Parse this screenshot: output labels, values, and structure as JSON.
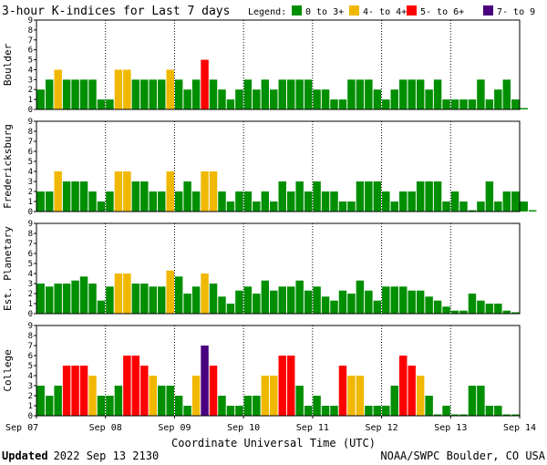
{
  "chart_data": {
    "type": "bar",
    "title": "3-hour K-indices for Last 7 days",
    "legend_title": "Legend:",
    "legend": [
      {
        "label": "0 to 3+",
        "color": "#008f00"
      },
      {
        "label": "4- to 4+",
        "color": "#f0b800"
      },
      {
        "label": "5- to 6+",
        "color": "#ff0000"
      },
      {
        "label": "7- to 9",
        "color": "#48007f"
      }
    ],
    "ylim": [
      0,
      9
    ],
    "y_ticks": [
      "0",
      "1",
      "2",
      "3",
      "4",
      "5",
      "6",
      "7",
      "8",
      "9"
    ],
    "x_ticks": [
      "Sep 07",
      "Sep 08",
      "Sep 09",
      "Sep 10",
      "Sep 11",
      "Sep 12",
      "Sep 13",
      "Sep 14"
    ],
    "xlabel": "Coordinate Universal Time (UTC)",
    "interval_hours": 3,
    "series": [
      {
        "name": "Boulder",
        "values": [
          2,
          3,
          4,
          3,
          3,
          3,
          3,
          1,
          1,
          4,
          4,
          3,
          3,
          3,
          3,
          4,
          3,
          2,
          3,
          5,
          3,
          2,
          1,
          2,
          3,
          2,
          3,
          2,
          3,
          3,
          3,
          3,
          2,
          2,
          1,
          1,
          3,
          3,
          3,
          2,
          1,
          2,
          3,
          3,
          3,
          2,
          3,
          1,
          1,
          1,
          1,
          3,
          1,
          2,
          3,
          1,
          0.1
        ]
      },
      {
        "name": "Fredericksburg",
        "values": [
          2,
          2,
          4,
          3,
          3,
          3,
          2,
          1,
          2,
          4,
          4,
          3,
          3,
          2,
          2,
          4,
          2,
          3,
          2,
          4,
          4,
          2,
          1,
          2,
          2,
          1,
          2,
          1,
          3,
          2,
          3,
          2,
          3,
          2,
          2,
          1,
          1,
          3,
          3,
          3,
          2,
          1,
          2,
          2,
          3,
          3,
          3,
          1,
          2,
          1,
          0.1,
          1,
          3,
          1,
          2,
          2,
          1,
          0.1
        ]
      },
      {
        "name": "Est. Planetary",
        "values": [
          3,
          2.7,
          3,
          3,
          3.3,
          3.7,
          3,
          1.3,
          2.7,
          4,
          4,
          3,
          3,
          2.7,
          2.7,
          4.3,
          3.7,
          2,
          2.7,
          4,
          3,
          1.7,
          1,
          2.3,
          2.7,
          2,
          3.3,
          2.3,
          2.7,
          2.7,
          3.3,
          2.3,
          2.7,
          1.7,
          1.3,
          2.3,
          2,
          3.3,
          2.3,
          1.3,
          2.7,
          2.7,
          2.7,
          2.3,
          2.3,
          1.7,
          1.3,
          0.7,
          0.3,
          0.3,
          2,
          1.3,
          1,
          1,
          0.3,
          0.1
        ]
      },
      {
        "name": "College",
        "values": [
          3,
          2,
          3,
          5,
          5,
          5,
          4,
          2,
          2,
          3,
          6,
          6,
          5,
          4,
          3,
          3,
          2,
          1,
          4,
          7,
          5,
          2,
          1,
          1,
          2,
          2,
          4,
          4,
          6,
          6,
          3,
          1,
          2,
          1,
          1,
          5,
          4,
          4,
          1,
          1,
          1,
          3,
          6,
          5,
          4,
          2,
          0.1,
          1,
          0.1,
          0.1,
          3,
          3,
          1,
          1,
          0.1,
          0.1
        ]
      }
    ]
  },
  "footer": {
    "updated_label": "Updated",
    "updated_value": "2022 Sep 13 2130",
    "source": "NOAA/SWPC Boulder, CO USA"
  }
}
